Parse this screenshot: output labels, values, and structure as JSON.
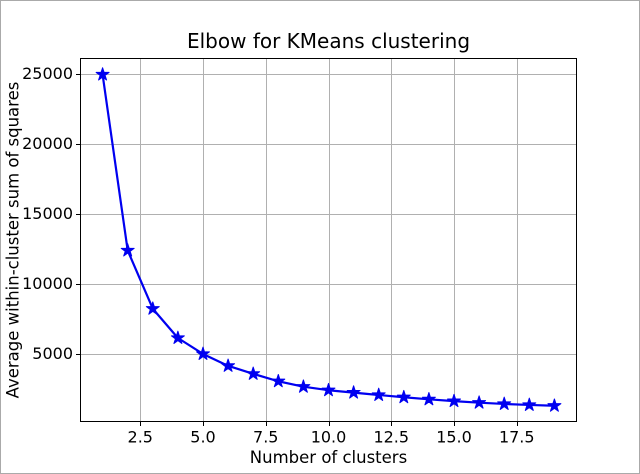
{
  "figure": {
    "title": "Elbow for KMeans clustering",
    "xlabel": "Number of clusters",
    "ylabel": "Average within-cluster sum of squares"
  },
  "chart_data": {
    "type": "line",
    "title": "Elbow for KMeans clustering",
    "xlabel": "Number of clusters",
    "ylabel": "Average within-cluster sum of squares",
    "series": [
      {
        "name": "average-within-cluster-sum-of-squares",
        "x": [
          1,
          2,
          3,
          4,
          5,
          6,
          7,
          8,
          9,
          10,
          11,
          12,
          13,
          14,
          15,
          16,
          17,
          18,
          19
        ],
        "y": [
          24950,
          12380,
          8220,
          6130,
          4990,
          4140,
          3570,
          3040,
          2650,
          2400,
          2230,
          2060,
          1900,
          1750,
          1620,
          1510,
          1420,
          1350,
          1290
        ],
        "color": "#0000f0",
        "marker": "star"
      }
    ],
    "xlim": [
      0.1,
      19.9
    ],
    "ylim": [
      130,
      26130
    ],
    "xticks": {
      "values": [
        2.5,
        5.0,
        7.5,
        10.0,
        12.5,
        15.0,
        17.5
      ],
      "labels": [
        "2.5",
        "5.0",
        "7.5",
        "10.0",
        "12.5",
        "15.0",
        "17.5"
      ]
    },
    "yticks": {
      "values": [
        5000,
        10000,
        15000,
        20000,
        25000
      ],
      "labels": [
        "5000",
        "10000",
        "15000",
        "20000",
        "25000"
      ]
    },
    "grid": true,
    "legend": "none",
    "grid_color": "#b0b0b0",
    "spine_color": "#000000",
    "tick_color": "#000000",
    "background_color": "#ffffff",
    "figure_border_color": "#aaaaaa"
  }
}
